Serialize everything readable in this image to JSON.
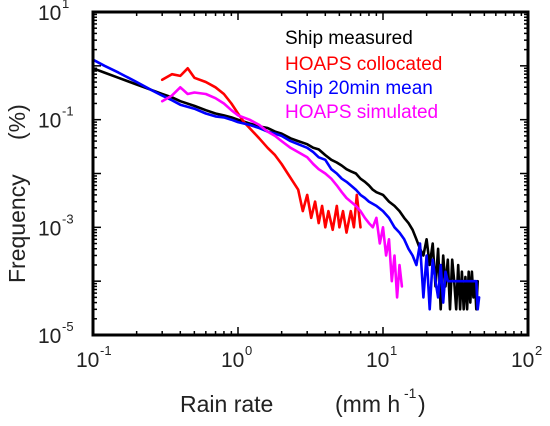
{
  "chart_data": {
    "type": "line",
    "xlabel": {
      "main": "Rain rate",
      "unit_prefix": "(mm h",
      "unit_exp": "-1",
      "unit_suffix": ")"
    },
    "ylabel": {
      "main": "Frequency",
      "unit": "(%)"
    },
    "xscale": "log",
    "yscale": "log",
    "xlim": [
      0.1,
      100
    ],
    "ylim": [
      1e-05,
      10
    ],
    "x_ticks": [
      {
        "value": 0.1,
        "base": "10",
        "exp": "-1"
      },
      {
        "value": 1,
        "base": "10",
        "exp": "0"
      },
      {
        "value": 10,
        "base": "10",
        "exp": "1"
      },
      {
        "value": 100,
        "base": "10",
        "exp": "2"
      }
    ],
    "y_ticks": [
      {
        "value": 1e-05,
        "base": "10",
        "exp": "-5"
      },
      {
        "value": 0.001,
        "base": "10",
        "exp": "-3"
      },
      {
        "value": 0.1,
        "base": "10",
        "exp": "-1"
      },
      {
        "value": 10,
        "base": "10",
        "exp": "1"
      }
    ],
    "grid": false,
    "legend_position": "top-right",
    "series": [
      {
        "name": "Ship measured",
        "color": "#000000",
        "points": [
          [
            0.1,
            0.9
          ],
          [
            0.12,
            0.75
          ],
          [
            0.15,
            0.6
          ],
          [
            0.2,
            0.45
          ],
          [
            0.25,
            0.36
          ],
          [
            0.3,
            0.3
          ],
          [
            0.35,
            0.26
          ],
          [
            0.4,
            0.22
          ],
          [
            0.5,
            0.18
          ],
          [
            0.6,
            0.15
          ],
          [
            0.7,
            0.13
          ],
          [
            0.8,
            0.12
          ],
          [
            0.9,
            0.11
          ],
          [
            1.0,
            0.1
          ],
          [
            1.2,
            0.085
          ],
          [
            1.4,
            0.075
          ],
          [
            1.6,
            0.07
          ],
          [
            1.8,
            0.06
          ],
          [
            2.0,
            0.055
          ],
          [
            2.3,
            0.045
          ],
          [
            2.6,
            0.04
          ],
          [
            3.0,
            0.035
          ],
          [
            3.3,
            0.03
          ],
          [
            3.6,
            0.028
          ],
          [
            4.0,
            0.022
          ],
          [
            4.4,
            0.018
          ],
          [
            4.8,
            0.016
          ],
          [
            5.2,
            0.014
          ],
          [
            5.6,
            0.012
          ],
          [
            6.0,
            0.011
          ],
          [
            6.5,
            0.01
          ],
          [
            7.0,
            0.008
          ],
          [
            7.5,
            0.007
          ],
          [
            8.0,
            0.006
          ],
          [
            8.5,
            0.005
          ],
          [
            9.0,
            0.0045
          ],
          [
            10,
            0.004
          ],
          [
            11,
            0.003
          ],
          [
            12,
            0.0025
          ],
          [
            13,
            0.002
          ],
          [
            14,
            0.0015
          ],
          [
            15,
            0.0012
          ],
          [
            16,
            0.0009
          ],
          [
            17,
            0.0006
          ],
          [
            18,
            0.0004
          ],
          [
            19,
            0.0003
          ],
          [
            20,
            0.0006
          ],
          [
            21,
            0.0002
          ],
          [
            22,
            0.0005
          ],
          [
            23,
            8e-05
          ],
          [
            24,
            0.0004
          ],
          [
            25,
            3e-05
          ],
          [
            26,
            0.0003
          ],
          [
            27,
            8e-05
          ],
          [
            28,
            0.00025
          ],
          [
            29,
            3e-05
          ],
          [
            30,
            0.00025
          ],
          [
            31,
            0.0001
          ],
          [
            32,
            3e-05
          ],
          [
            33,
            0.0002
          ],
          [
            34,
            3e-05
          ],
          [
            35,
            0.00015
          ],
          [
            36,
            3e-05
          ],
          [
            37,
            0.00012
          ],
          [
            38,
            3e-05
          ],
          [
            39,
            0.00015
          ],
          [
            40,
            4e-05
          ],
          [
            41,
            0.00015
          ],
          [
            42,
            5e-05
          ],
          [
            43,
            0.0001
          ],
          [
            44,
            3e-05
          ],
          [
            45,
            0.0001
          ]
        ]
      },
      {
        "name": "HOAPS collocated",
        "color": "#ff0000",
        "points": [
          [
            0.3,
            0.55
          ],
          [
            0.35,
            0.7
          ],
          [
            0.4,
            0.65
          ],
          [
            0.45,
            0.9
          ],
          [
            0.5,
            0.6
          ],
          [
            0.6,
            0.5
          ],
          [
            0.7,
            0.4
          ],
          [
            0.8,
            0.3
          ],
          [
            0.9,
            0.2
          ],
          [
            1.0,
            0.13
          ],
          [
            1.1,
            0.09
          ],
          [
            1.2,
            0.07
          ],
          [
            1.4,
            0.045
          ],
          [
            1.6,
            0.03
          ],
          [
            1.8,
            0.022
          ],
          [
            2.0,
            0.015
          ],
          [
            2.2,
            0.01
          ],
          [
            2.4,
            0.007
          ],
          [
            2.6,
            0.005
          ],
          [
            2.8,
            0.002
          ],
          [
            3.0,
            0.004
          ],
          [
            3.2,
            0.0015
          ],
          [
            3.4,
            0.003
          ],
          [
            3.6,
            0.0012
          ],
          [
            3.8,
            0.0025
          ],
          [
            4.0,
            0.001
          ],
          [
            4.2,
            0.002
          ],
          [
            4.5,
            0.0009
          ],
          [
            4.8,
            0.0025
          ],
          [
            5.0,
            0.001
          ],
          [
            5.3,
            0.002
          ],
          [
            5.6,
            0.0008
          ],
          [
            6.0,
            0.002
          ],
          [
            6.3,
            0.001
          ],
          [
            6.6,
            0.004
          ],
          [
            7.0,
            0.001
          ]
        ]
      },
      {
        "name": "Ship 20min mean",
        "color": "#0000ff",
        "points": [
          [
            0.1,
            1.3
          ],
          [
            0.12,
            1.0
          ],
          [
            0.15,
            0.75
          ],
          [
            0.2,
            0.5
          ],
          [
            0.25,
            0.36
          ],
          [
            0.3,
            0.28
          ],
          [
            0.35,
            0.23
          ],
          [
            0.4,
            0.19
          ],
          [
            0.5,
            0.16
          ],
          [
            0.6,
            0.13
          ],
          [
            0.7,
            0.115
          ],
          [
            0.8,
            0.11
          ],
          [
            0.9,
            0.1
          ],
          [
            1.0,
            0.09
          ],
          [
            1.2,
            0.08
          ],
          [
            1.4,
            0.07
          ],
          [
            1.6,
            0.06
          ],
          [
            1.8,
            0.055
          ],
          [
            2.0,
            0.05
          ],
          [
            2.3,
            0.04
          ],
          [
            2.6,
            0.035
          ],
          [
            3.0,
            0.03
          ],
          [
            3.3,
            0.025
          ],
          [
            3.6,
            0.02
          ],
          [
            4.0,
            0.018
          ],
          [
            4.4,
            0.012
          ],
          [
            4.8,
            0.01
          ],
          [
            5.2,
            0.008
          ],
          [
            5.6,
            0.007
          ],
          [
            6.0,
            0.006
          ],
          [
            6.5,
            0.005
          ],
          [
            7.0,
            0.004
          ],
          [
            7.5,
            0.0035
          ],
          [
            8.0,
            0.003
          ],
          [
            9.0,
            0.0025
          ],
          [
            10,
            0.002
          ],
          [
            11,
            0.0015
          ],
          [
            12,
            0.001
          ],
          [
            13,
            0.0008
          ],
          [
            14,
            0.0006
          ],
          [
            15,
            0.0004
          ],
          [
            16,
            0.0003
          ],
          [
            17,
            0.0002
          ],
          [
            18,
            0.0005
          ],
          [
            19,
            5e-05
          ],
          [
            20,
            0.0003
          ],
          [
            21,
            3e-05
          ],
          [
            22,
            0.00025
          ],
          [
            23,
            0.0001
          ],
          [
            24,
            5e-05
          ],
          [
            25,
            0.0002
          ],
          [
            26,
            4e-05
          ],
          [
            27,
            0.00015
          ],
          [
            28,
            0.0001
          ],
          [
            44,
            0.0001
          ],
          [
            45,
            3e-05
          ],
          [
            46,
            5e-05
          ]
        ]
      },
      {
        "name": "HOAPS simulated",
        "color": "#ff00ff",
        "points": [
          [
            0.3,
            0.22
          ],
          [
            0.35,
            0.28
          ],
          [
            0.4,
            0.4
          ],
          [
            0.45,
            0.3
          ],
          [
            0.5,
            0.32
          ],
          [
            0.6,
            0.3
          ],
          [
            0.7,
            0.25
          ],
          [
            0.8,
            0.2
          ],
          [
            0.9,
            0.15
          ],
          [
            1.0,
            0.12
          ],
          [
            1.2,
            0.1
          ],
          [
            1.4,
            0.08
          ],
          [
            1.6,
            0.06
          ],
          [
            1.8,
            0.05
          ],
          [
            2.0,
            0.04
          ],
          [
            2.3,
            0.03
          ],
          [
            2.6,
            0.025
          ],
          [
            3.0,
            0.02
          ],
          [
            3.3,
            0.015
          ],
          [
            3.6,
            0.012
          ],
          [
            4.0,
            0.01
          ],
          [
            4.4,
            0.008
          ],
          [
            4.8,
            0.006
          ],
          [
            5.2,
            0.0045
          ],
          [
            5.6,
            0.0035
          ],
          [
            6.0,
            0.003
          ],
          [
            6.5,
            0.0025
          ],
          [
            7.0,
            0.002
          ],
          [
            7.5,
            0.0015
          ],
          [
            8.0,
            0.0012
          ],
          [
            8.5,
            0.001
          ],
          [
            9.0,
            0.0015
          ],
          [
            9.5,
            0.0005
          ],
          [
            10,
            0.001
          ],
          [
            10.5,
            0.0003
          ],
          [
            11,
            0.0006
          ],
          [
            11.5,
            0.0001
          ],
          [
            12,
            0.0003
          ],
          [
            12.5,
            5e-05
          ],
          [
            13,
            0.0002
          ],
          [
            13.5,
            8e-05
          ]
        ]
      }
    ]
  }
}
